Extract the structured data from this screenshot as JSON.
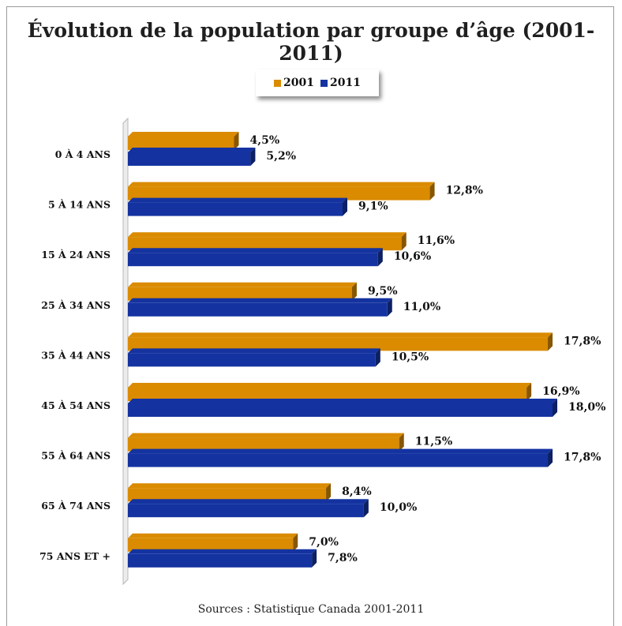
{
  "chart_data": {
    "type": "bar",
    "orientation": "horizontal",
    "title": "Évolution de la population par groupe d’âge (2001-2011)",
    "categories": [
      "0 À 4 ANS",
      "5 À 14 ANS",
      "15 À 24 ANS",
      "25 À 34 ANS",
      "35 À 44 ANS",
      "45 À 54 ANS",
      "55 À 64 ANS",
      "65 À 74 ANS",
      "75 ANS ET +"
    ],
    "series": [
      {
        "name": "2001",
        "color": "#DA8B00",
        "values": [
          4.5,
          12.8,
          11.6,
          9.5,
          17.8,
          16.9,
          11.5,
          8.4,
          7.0
        ],
        "labels": [
          "4,5%",
          "12,8%",
          "11,6%",
          "9,5%",
          "17,8%",
          "16,9%",
          "11,5%",
          "8,4%",
          "7,0%"
        ]
      },
      {
        "name": "2011",
        "color": "#1433A0",
        "values": [
          5.2,
          9.1,
          10.6,
          11.0,
          10.5,
          18.0,
          17.8,
          10.0,
          7.8
        ],
        "labels": [
          "5,2%",
          "9,1%",
          "10,6%",
          "11,0%",
          "10,5%",
          "18,0%",
          "17,8%",
          "10,0%",
          "7,8%"
        ]
      }
    ],
    "xlim": [
      0,
      18
    ],
    "grid": false,
    "legend_position": "top-center",
    "source": "Sources : Statistique Canada 2001-2011"
  }
}
